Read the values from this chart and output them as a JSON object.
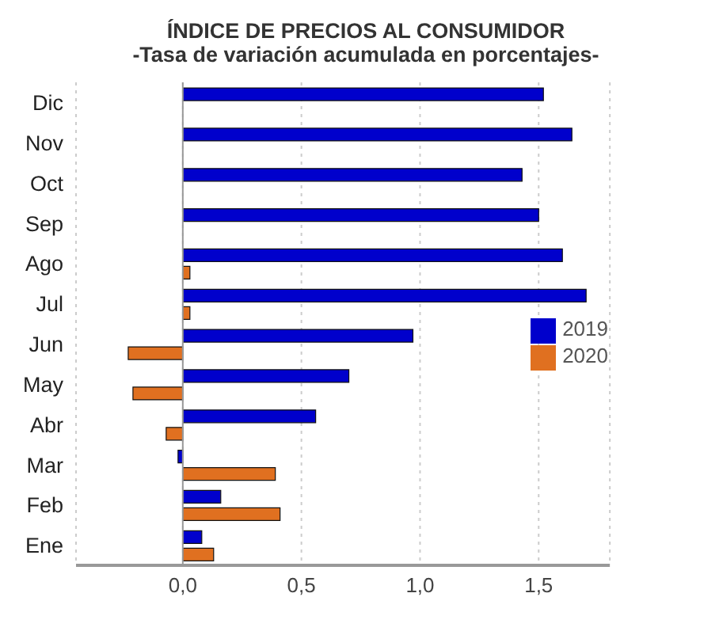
{
  "chart_data": {
    "type": "bar",
    "orientation": "horizontal",
    "title": "ÍNDICE DE PRECIOS AL CONSUMIDOR",
    "subtitle": "-Tasa de variación acumulada en porcentajes-",
    "categories": [
      "Dic",
      "Nov",
      "Oct",
      "Sep",
      "Ago",
      "Jul",
      "Jun",
      "May",
      "Abr",
      "Mar",
      "Feb",
      "Ene"
    ],
    "series": [
      {
        "name": "2019",
        "color": "#0000cc",
        "values": [
          1.52,
          1.64,
          1.43,
          1.5,
          1.6,
          1.7,
          0.97,
          0.7,
          0.56,
          -0.02,
          0.16,
          0.08
        ]
      },
      {
        "name": "2020",
        "color": "#e07020",
        "values": [
          null,
          null,
          null,
          null,
          0.03,
          0.03,
          -0.23,
          -0.21,
          -0.07,
          0.39,
          0.41,
          0.13
        ]
      }
    ],
    "xlim": [
      -0.45,
      1.8
    ],
    "xticks": [
      {
        "value": 0,
        "label": "0,0"
      },
      {
        "value": 0.5,
        "label": "0,5"
      },
      {
        "value": 1,
        "label": "1,0"
      },
      {
        "value": 1.5,
        "label": "1,5"
      }
    ],
    "ref_lines": [
      {
        "axis": "x",
        "value": 0,
        "color": "#999999"
      }
    ],
    "grid": "x",
    "legend": "right"
  }
}
